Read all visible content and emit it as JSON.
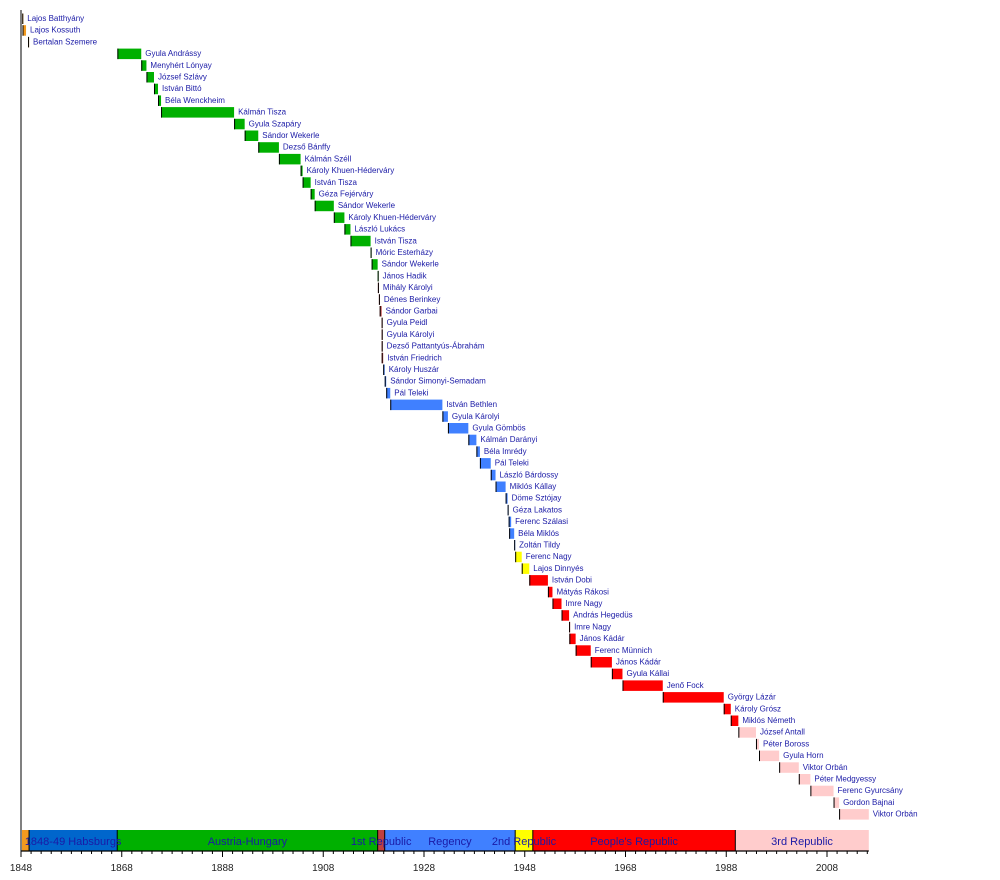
{
  "chart_data": {
    "type": "timeline",
    "title": "",
    "xlabel": "",
    "ylabel": "",
    "xlim": [
      1848,
      2016.3
    ],
    "x_ticks": [
      1848,
      1868,
      1888,
      1908,
      1928,
      1948,
      1968,
      1988,
      2008
    ],
    "x_tick_labels": [
      "1848",
      "1868",
      "1888",
      "1908",
      "1928",
      "1948",
      "1968",
      "1988",
      "2008"
    ],
    "era_colors": {
      "revolution": "#f39a1e",
      "habsburg": "#0066cc",
      "austria_hungary": "#00b000",
      "first_republic": "#c04040",
      "regency": "#4080ff",
      "second_republic": "#ffff00",
      "peoples_republic": "#ff0000",
      "third_republic": "#ffcccc"
    },
    "eras": [
      {
        "label": "",
        "key": "revolution",
        "start": 1848.2,
        "end": 1849.6
      },
      {
        "label": "1848-49 Habsburgs",
        "key": "habsburg",
        "start": 1849.6,
        "end": 1867.1
      },
      {
        "label": "Austria-Hungary",
        "key": "austria_hungary",
        "start": 1867.1,
        "end": 1918.8
      },
      {
        "label": "1st Republic",
        "key": "first_republic",
        "start": 1918.8,
        "end": 1920.2
      },
      {
        "label": "Regency",
        "key": "regency",
        "start": 1920.2,
        "end": 1946.1
      },
      {
        "label": "2nd Republic",
        "key": "second_republic",
        "start": 1946.1,
        "end": 1949.6
      },
      {
        "label": "People's Republic",
        "key": "peoples_republic",
        "start": 1949.6,
        "end": 1989.8
      },
      {
        "label": "3rd Republic",
        "key": "third_republic",
        "start": 1989.8,
        "end": 2016.3
      }
    ],
    "series": [
      {
        "name": "Lajos Batthyány",
        "start": 1848.25,
        "end": 1848.3,
        "era": "revolution"
      },
      {
        "name": "Lajos Kossuth",
        "start": 1848.3,
        "end": 1849.0,
        "era": "revolution"
      },
      {
        "name": "Bertalan Szemere",
        "start": 1849.4,
        "end": 1849.6,
        "era": "revolution"
      },
      {
        "name": "Gyula Andrássy",
        "start": 1867.13,
        "end": 1871.87,
        "era": "austria_hungary"
      },
      {
        "name": "Menyhért Lónyay",
        "start": 1871.87,
        "end": 1872.9,
        "era": "austria_hungary"
      },
      {
        "name": "József Szlávy",
        "start": 1872.9,
        "end": 1874.4,
        "era": "austria_hungary"
      },
      {
        "name": "István Bittó",
        "start": 1874.4,
        "end": 1875.2,
        "era": "austria_hungary"
      },
      {
        "name": "Béla Wenckheim",
        "start": 1875.2,
        "end": 1875.8,
        "era": "austria_hungary"
      },
      {
        "name": "Kálmán Tisza",
        "start": 1875.8,
        "end": 1890.3,
        "era": "austria_hungary"
      },
      {
        "name": "Gyula Szapáry",
        "start": 1890.3,
        "end": 1892.4,
        "era": "austria_hungary"
      },
      {
        "name": "Sándor Wekerle",
        "start": 1892.4,
        "end": 1895.1,
        "era": "austria_hungary"
      },
      {
        "name": "Dezső Bánffy",
        "start": 1895.1,
        "end": 1899.2,
        "era": "austria_hungary"
      },
      {
        "name": "Kálmán Széll",
        "start": 1899.2,
        "end": 1903.5,
        "era": "austria_hungary"
      },
      {
        "name": "Károly Khuen-Héderváry",
        "start": 1903.5,
        "end": 1903.9,
        "era": "austria_hungary"
      },
      {
        "name": "István Tisza",
        "start": 1903.9,
        "end": 1905.5,
        "era": "austria_hungary"
      },
      {
        "name": "Géza Fejérváry",
        "start": 1905.5,
        "end": 1906.3,
        "era": "austria_hungary"
      },
      {
        "name": "Sándor Wekerle",
        "start": 1906.3,
        "end": 1910.1,
        "era": "austria_hungary"
      },
      {
        "name": "Károly Khuen-Héderváry",
        "start": 1910.1,
        "end": 1912.2,
        "era": "austria_hungary"
      },
      {
        "name": "László Lukács",
        "start": 1912.2,
        "end": 1913.4,
        "era": "austria_hungary"
      },
      {
        "name": "István Tisza",
        "start": 1913.4,
        "end": 1917.4,
        "era": "austria_hungary"
      },
      {
        "name": "Móric Esterházy",
        "start": 1917.4,
        "end": 1917.6,
        "era": "austria_hungary"
      },
      {
        "name": "Sándor Wekerle",
        "start": 1917.6,
        "end": 1918.8,
        "era": "austria_hungary"
      },
      {
        "name": "János Hadik",
        "start": 1918.8,
        "end": 1918.85,
        "era": "austria_hungary"
      },
      {
        "name": "Mihály Károlyi",
        "start": 1918.85,
        "end": 1919.05,
        "era": "first_republic"
      },
      {
        "name": "Dénes Berinkey",
        "start": 1919.05,
        "end": 1919.2,
        "era": "first_republic"
      },
      {
        "name": "Sándor Garbai",
        "start": 1919.2,
        "end": 1919.59,
        "era": "first_republic"
      },
      {
        "name": "Gyula Peidl",
        "start": 1919.59,
        "end": 1919.6,
        "era": "first_republic"
      },
      {
        "name": "Gyula Károlyi",
        "start": 1919.6,
        "end": 1919.61,
        "era": "first_republic"
      },
      {
        "name": "Dezső Pattantyús-Ábrahám",
        "start": 1919.6,
        "end": 1919.61,
        "era": "first_republic"
      },
      {
        "name": "István Friedrich",
        "start": 1919.6,
        "end": 1919.9,
        "era": "first_republic"
      },
      {
        "name": "Károly Huszár",
        "start": 1919.9,
        "end": 1920.2,
        "era": "regency"
      },
      {
        "name": "Sándor Simonyi-Semadam",
        "start": 1920.2,
        "end": 1920.5,
        "era": "regency"
      },
      {
        "name": "Pál Teleki",
        "start": 1920.5,
        "end": 1921.3,
        "era": "regency"
      },
      {
        "name": "István Bethlen",
        "start": 1921.3,
        "end": 1931.65,
        "era": "regency"
      },
      {
        "name": "Gyula Károlyi",
        "start": 1931.65,
        "end": 1932.75,
        "era": "regency"
      },
      {
        "name": "Gyula Gömbös",
        "start": 1932.75,
        "end": 1936.8,
        "era": "regency"
      },
      {
        "name": "Kálmán Darányi",
        "start": 1936.8,
        "end": 1938.4,
        "era": "regency"
      },
      {
        "name": "Béla Imrédy",
        "start": 1938.4,
        "end": 1939.1,
        "era": "regency"
      },
      {
        "name": "Pál Teleki",
        "start": 1939.1,
        "end": 1941.25,
        "era": "regency"
      },
      {
        "name": "László Bárdossy",
        "start": 1941.25,
        "end": 1942.2,
        "era": "regency"
      },
      {
        "name": "Miklós Kállay",
        "start": 1942.2,
        "end": 1944.2,
        "era": "regency"
      },
      {
        "name": "Döme Sztójay",
        "start": 1944.2,
        "end": 1944.6,
        "era": "regency"
      },
      {
        "name": "Géza Lakatos",
        "start": 1944.6,
        "end": 1944.8,
        "era": "regency"
      },
      {
        "name": "Ferenc Szálasi",
        "start": 1944.8,
        "end": 1945.3,
        "era": "regency"
      },
      {
        "name": "Béla Miklós",
        "start": 1944.9,
        "end": 1945.9,
        "era": "regency"
      },
      {
        "name": "Zoltán Tildy",
        "start": 1945.9,
        "end": 1946.1,
        "era": "regency"
      },
      {
        "name": "Ferenc Nagy",
        "start": 1946.1,
        "end": 1947.4,
        "era": "second_republic"
      },
      {
        "name": "Lajos Dinnyés",
        "start": 1947.4,
        "end": 1948.9,
        "era": "second_republic"
      },
      {
        "name": "István Dobi",
        "start": 1948.9,
        "end": 1952.6,
        "era": "peoples_republic"
      },
      {
        "name": "Mátyás Rákosi",
        "start": 1952.6,
        "end": 1953.5,
        "era": "peoples_republic"
      },
      {
        "name": "Imre Nagy",
        "start": 1953.5,
        "end": 1955.3,
        "era": "peoples_republic"
      },
      {
        "name": "András Hegedüs",
        "start": 1955.3,
        "end": 1956.8,
        "era": "peoples_republic"
      },
      {
        "name": "Imre Nagy",
        "start": 1956.8,
        "end": 1956.85,
        "era": "peoples_republic"
      },
      {
        "name": "János Kádár",
        "start": 1956.85,
        "end": 1958.1,
        "era": "peoples_republic"
      },
      {
        "name": "Ferenc Münnich",
        "start": 1958.1,
        "end": 1961.1,
        "era": "peoples_republic"
      },
      {
        "name": "János Kádár",
        "start": 1961.1,
        "end": 1965.3,
        "era": "peoples_republic"
      },
      {
        "name": "Gyula Kállai",
        "start": 1965.3,
        "end": 1967.4,
        "era": "peoples_republic"
      },
      {
        "name": "Jenő Fock",
        "start": 1967.4,
        "end": 1975.4,
        "era": "peoples_republic"
      },
      {
        "name": "György Lázár",
        "start": 1975.4,
        "end": 1987.5,
        "era": "peoples_republic"
      },
      {
        "name": "Károly Grósz",
        "start": 1987.5,
        "end": 1988.9,
        "era": "peoples_republic"
      },
      {
        "name": "Miklós Németh",
        "start": 1988.9,
        "end": 1990.4,
        "era": "peoples_republic"
      },
      {
        "name": "József Antall",
        "start": 1990.4,
        "end": 1993.9,
        "era": "third_republic"
      },
      {
        "name": "Péter Boross",
        "start": 1993.9,
        "end": 1994.5,
        "era": "third_republic"
      },
      {
        "name": "Gyula Horn",
        "start": 1994.5,
        "end": 1998.5,
        "era": "third_republic"
      },
      {
        "name": "Viktor Orbán",
        "start": 1998.5,
        "end": 2002.4,
        "era": "third_republic"
      },
      {
        "name": "Péter Medgyessy",
        "start": 2002.4,
        "end": 2004.7,
        "era": "third_republic"
      },
      {
        "name": "Ferenc Gyurcsány",
        "start": 2004.7,
        "end": 2009.3,
        "era": "third_republic"
      },
      {
        "name": "Gordon Bajnai",
        "start": 2009.3,
        "end": 2010.4,
        "era": "third_republic"
      },
      {
        "name": "Viktor Orbán",
        "start": 2010.4,
        "end": 2016.3,
        "era": "third_republic"
      }
    ]
  }
}
